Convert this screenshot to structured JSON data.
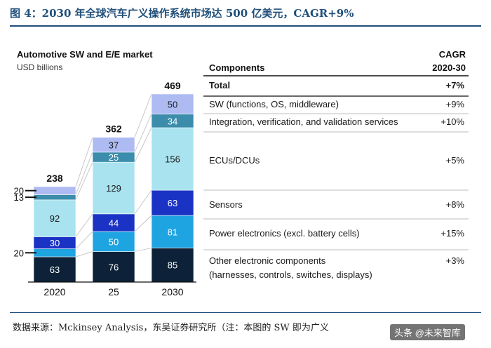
{
  "figure": {
    "title": "图 4：2030 年全球汽车广义操作系统市场达 500 亿美元，CAGR+9%",
    "source": "数据来源：Mckinsey Analysis，东吴证券研究所（注：本图的 SW 即为广义",
    "watermark": "头条 @未来智库"
  },
  "colors": {
    "background": "#ffffff",
    "figure_title": "#1f4e79",
    "other_electronic": "#0d2238",
    "power_electronics": "#1fa4e2",
    "sensors": "#1b33c4",
    "ecus_dcus": "#a9e3ef",
    "integration": "#3b8dab",
    "sw": "#aebbf2"
  },
  "chart_data": {
    "type": "bar",
    "stacked": true,
    "title": "Automotive SW and E/E market",
    "subtitle": "USD billions",
    "categories": [
      "2020",
      "25",
      "2030"
    ],
    "totals": [
      238,
      362,
      469
    ],
    "series": [
      {
        "name": "Other electronic components",
        "values": [
          63,
          76,
          85
        ]
      },
      {
        "name": "Power electronics",
        "values": [
          20,
          50,
          81
        ]
      },
      {
        "name": "Sensors",
        "values": [
          30,
          44,
          63
        ]
      },
      {
        "name": "ECUs/DCUs",
        "values": [
          92,
          129,
          156
        ]
      },
      {
        "name": "Integration, verification, and validation services",
        "values": [
          13,
          25,
          34
        ]
      },
      {
        "name": "SW (functions, OS, middleware)",
        "values": [
          20,
          37,
          50
        ]
      }
    ],
    "table": {
      "header_components": "Components",
      "header_cagr_line1": "CAGR",
      "header_cagr_line2": "2020-30",
      "rows": [
        {
          "label": "Total",
          "cagr": "+7%",
          "bold": true
        },
        {
          "label": "SW (functions, OS, middleware)",
          "cagr": "+9%"
        },
        {
          "label": "Integration, verification, and validation services",
          "cagr": "+10%"
        },
        {
          "label": "ECUs/DCUs",
          "cagr": "+5%"
        },
        {
          "label": "Sensors",
          "cagr": "+8%"
        },
        {
          "label": "Power electronics (excl. battery cells)",
          "cagr": "+15%"
        },
        {
          "label": "Other electronic components",
          "label2": "(harnesses, controls, switches, displays)",
          "cagr": "+3%"
        }
      ]
    }
  }
}
